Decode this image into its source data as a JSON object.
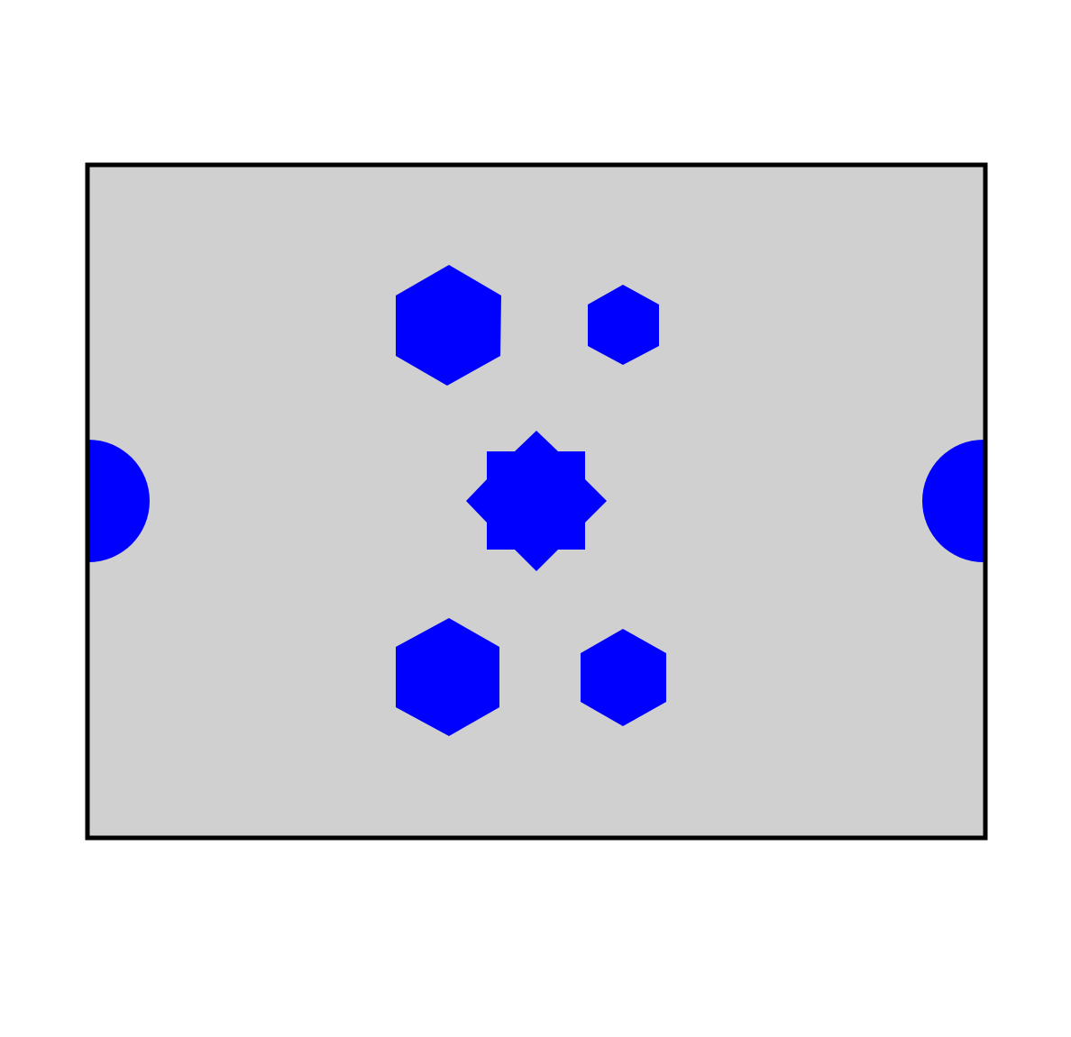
{
  "colors": {
    "background": "#ffffff",
    "panel_fill": "#d0d0d0",
    "panel_stroke": "#000000",
    "shape_fill": "#0000ff"
  },
  "shapes": [
    {
      "id": "hexagon-large-upper-left",
      "kind": "hexagon"
    },
    {
      "id": "hexagon-small-upper-right",
      "kind": "hexagon"
    },
    {
      "id": "star-center",
      "kind": "eight-point-star"
    },
    {
      "id": "hexagon-large-lower-left",
      "kind": "hexagon"
    },
    {
      "id": "hexagon-medium-lower-right",
      "kind": "hexagon"
    },
    {
      "id": "half-circle-left",
      "kind": "half-circle"
    },
    {
      "id": "half-circle-right",
      "kind": "half-circle"
    }
  ]
}
